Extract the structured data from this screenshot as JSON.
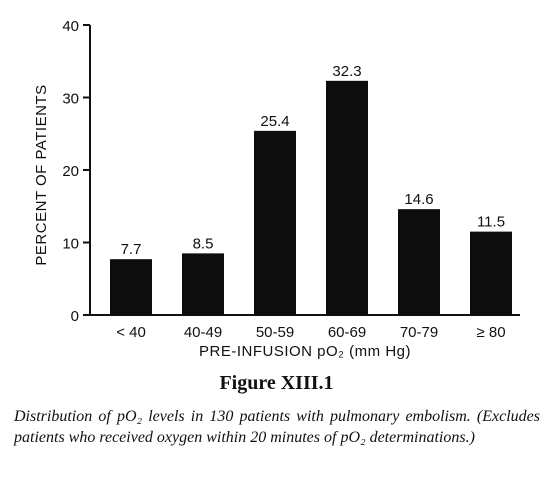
{
  "chart_data": {
    "type": "bar",
    "categories": [
      "< 40",
      "40-49",
      "50-59",
      "60-69",
      "70-79",
      "≥ 80"
    ],
    "values": [
      7.7,
      8.5,
      25.4,
      32.3,
      14.6,
      11.5
    ],
    "value_labels": [
      "7.7",
      "8.5",
      "25.4",
      "32.3",
      "14.6",
      "11.5"
    ],
    "xlabel": "PRE-INFUSION pO₂ (mm Hg)",
    "ylabel": "PERCENT OF PATIENTS",
    "ylim": [
      0,
      40
    ],
    "yticks": [
      0,
      10,
      20,
      30,
      40
    ],
    "bar_color": "#0d0d0d",
    "grid": false
  },
  "figure": {
    "label": "Figure XIII.1",
    "caption": "Distribution of pO₂ levels in 130 patients with pulmonary embolism. (Excludes patients who received oxygen within 20 minutes of pO₂ determinations.)"
  }
}
